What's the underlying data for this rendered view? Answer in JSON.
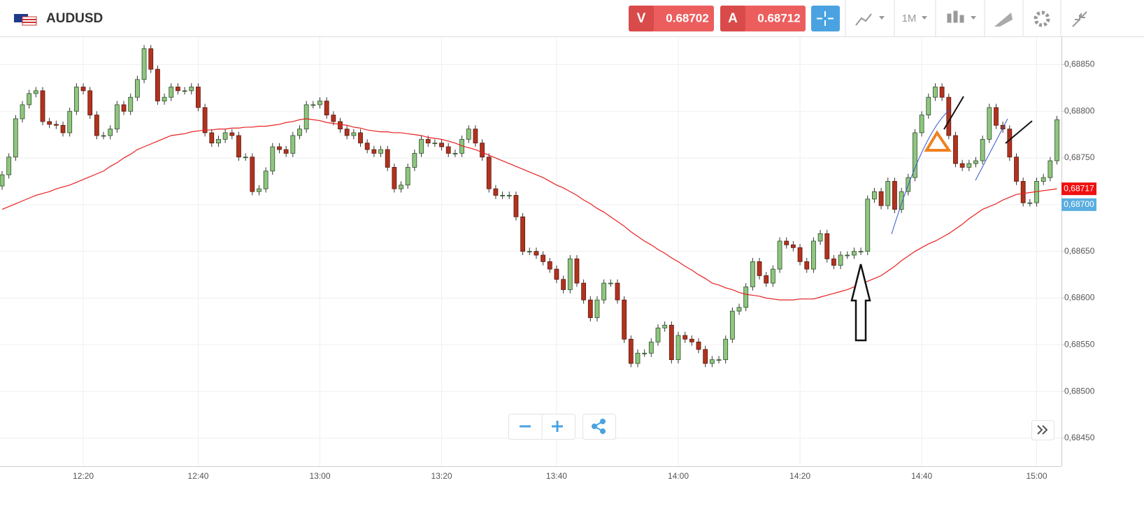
{
  "toolbar": {
    "symbol": "AUDUSD",
    "bid_letter": "V",
    "bid": "0.68702",
    "ask_letter": "A",
    "ask": "0.68712",
    "timeframe": "1M"
  },
  "chart_data": {
    "type": "candlestick",
    "up_color": "#8fc67f",
    "down_color": "#b2321e",
    "grid": true,
    "ylim": [
      0.6842,
      0.68878
    ],
    "yticks": [
      {
        "value": 0.6885,
        "label": "0,68850"
      },
      {
        "value": 0.688,
        "label": "0,68800"
      },
      {
        "value": 0.6875,
        "label": "0,68750"
      },
      {
        "value": 0.687,
        "label": "0,68700"
      },
      {
        "value": 0.6865,
        "label": "0,68650"
      },
      {
        "value": 0.686,
        "label": "0,68600"
      },
      {
        "value": 0.6855,
        "label": "0,68550"
      },
      {
        "value": 0.685,
        "label": "0,68500"
      },
      {
        "value": 0.6845,
        "label": "0,68450"
      }
    ],
    "price_markers": [
      {
        "value": 0.68717,
        "label": "0,68717",
        "color": "#f01010"
      },
      {
        "value": 0.687,
        "label": "0,68700",
        "color": "#5aaee0"
      }
    ],
    "categories": [
      null,
      null,
      null,
      null,
      null,
      null,
      null,
      null,
      null,
      null,
      null,
      null,
      "12:20",
      null,
      null,
      null,
      null,
      null,
      null,
      null,
      null,
      null,
      null,
      null,
      null,
      null,
      null,
      null,
      null,
      "12:40",
      null,
      null,
      null,
      null,
      null,
      null,
      null,
      null,
      null,
      null,
      null,
      null,
      null,
      null,
      null,
      null,
      null,
      "13:00",
      null,
      null,
      null,
      null,
      null,
      null,
      null,
      null,
      null,
      null,
      null,
      null,
      null,
      null,
      null,
      null,
      null,
      "13:20",
      null,
      null,
      null,
      null,
      null,
      null,
      null,
      null,
      null,
      null,
      null,
      null,
      null,
      null,
      null,
      null,
      "13:40",
      null,
      null,
      null,
      null,
      null,
      null,
      null,
      null,
      null,
      null,
      null,
      null,
      null,
      null,
      null,
      null,
      null,
      "14:00",
      null,
      null,
      null,
      null,
      null,
      null,
      null,
      null,
      null,
      null,
      null,
      null,
      null,
      null,
      null,
      null,
      null,
      "14:20",
      null,
      null,
      null,
      null,
      null,
      null,
      null,
      null,
      null,
      null,
      null,
      null,
      null,
      null,
      null,
      null,
      null,
      "14:40",
      null,
      null,
      null,
      null,
      null,
      null,
      null,
      null,
      null,
      null,
      null,
      null,
      null,
      null,
      null,
      null,
      "15:00",
      null,
      null,
      null
    ],
    "open": [
      0.6872,
      0.68732,
      0.68751,
      0.68792,
      0.68807,
      0.68819,
      0.68822,
      0.68789,
      0.68786,
      0.68785,
      0.68777,
      0.688,
      0.68826,
      0.68822,
      0.68796,
      0.68774,
      0.68774,
      0.68781,
      0.68807,
      0.688,
      0.68815,
      0.68834,
      0.68867,
      0.68845,
      0.68811,
      0.68815,
      0.68826,
      0.68822,
      0.68822,
      0.68826,
      0.68804,
      0.68777,
      0.68766,
      0.6877,
      0.68777,
      0.68774,
      0.68751,
      0.68751,
      0.68714,
      0.68717,
      0.68736,
      0.68762,
      0.68759,
      0.68755,
      0.68774,
      0.68781,
      0.68807,
      0.68807,
      0.68811,
      0.68796,
      0.68789,
      0.68781,
      0.68774,
      0.68777,
      0.68766,
      0.68759,
      0.68755,
      0.68759,
      0.6874,
      0.68717,
      0.68721,
      0.6874,
      0.68755,
      0.6877,
      0.68766,
      0.68766,
      0.68762,
      0.68755,
      0.68755,
      0.6877,
      0.68781,
      0.68766,
      0.68751,
      0.68717,
      0.6871,
      0.6871,
      0.6871,
      0.68687,
      0.6865,
      0.6865,
      0.68646,
      0.68639,
      0.68631,
      0.6862,
      0.68609,
      0.68642,
      0.68616,
      0.68598,
      0.68579,
      0.68598,
      0.68616,
      0.68616,
      0.68598,
      0.68556,
      0.6853,
      0.68541,
      0.68541,
      0.68553,
      0.68568,
      0.68571,
      0.68534,
      0.6856,
      0.68556,
      0.68553,
      0.68545,
      0.6853,
      0.68534,
      0.68534,
      0.68556,
      0.68586,
      0.6859,
      0.68612,
      0.68639,
      0.68624,
      0.68616,
      0.68631,
      0.68661,
      0.68657,
      0.68654,
      0.68639,
      0.68631,
      0.68661,
      0.68669,
      0.68642,
      0.68635,
      0.68646,
      0.68646,
      0.6865,
      0.6865,
      0.68706,
      0.68714,
      0.68699,
      0.68725,
      0.68695,
      0.68714,
      0.68729,
      0.68777,
      0.68796,
      0.68815,
      0.68826,
      0.68815,
      0.68774,
      0.68744,
      0.6874,
      0.68744,
      0.68747,
      0.6877,
      0.68804,
      0.68785,
      0.68781,
      0.68751,
      0.68725,
      0.68702,
      0.68702,
      0.68725,
      0.68729,
      0.68747
    ],
    "high": [
      0.68736,
      0.68755,
      0.68796,
      0.68811,
      0.68823,
      0.68826,
      0.68826,
      0.68793,
      0.6879,
      0.68789,
      0.68804,
      0.6883,
      0.6883,
      0.68826,
      0.688,
      0.68778,
      0.68785,
      0.68811,
      0.68811,
      0.68819,
      0.68838,
      0.68871,
      0.68871,
      0.68849,
      0.68819,
      0.6883,
      0.6883,
      0.68826,
      0.6883,
      0.6883,
      0.68808,
      0.68781,
      0.68774,
      0.68781,
      0.68781,
      0.68778,
      0.68755,
      0.68755,
      0.68721,
      0.6874,
      0.68766,
      0.68766,
      0.68763,
      0.68778,
      0.68785,
      0.68811,
      0.68811,
      0.68815,
      0.68815,
      0.688,
      0.68793,
      0.68785,
      0.68781,
      0.68781,
      0.6877,
      0.68763,
      0.68763,
      0.68763,
      0.68744,
      0.68725,
      0.68744,
      0.68759,
      0.68774,
      0.68774,
      0.6877,
      0.6877,
      0.68766,
      0.68759,
      0.68774,
      0.68785,
      0.68785,
      0.6877,
      0.68755,
      0.68721,
      0.68714,
      0.68714,
      0.68714,
      0.68691,
      0.68654,
      0.68654,
      0.6865,
      0.68643,
      0.68635,
      0.68624,
      0.68646,
      0.68646,
      0.6862,
      0.68602,
      0.68602,
      0.6862,
      0.6862,
      0.6862,
      0.68602,
      0.6856,
      0.68545,
      0.68545,
      0.68557,
      0.68572,
      0.68575,
      0.68575,
      0.68564,
      0.68564,
      0.6856,
      0.68557,
      0.68549,
      0.68538,
      0.68538,
      0.6856,
      0.6859,
      0.68594,
      0.68616,
      0.68643,
      0.68643,
      0.68628,
      0.68635,
      0.68665,
      0.68665,
      0.68661,
      0.68658,
      0.68643,
      0.68665,
      0.68673,
      0.68673,
      0.68646,
      0.6865,
      0.6865,
      0.68654,
      0.68654,
      0.6871,
      0.68718,
      0.68718,
      0.68729,
      0.68729,
      0.68718,
      0.68733,
      0.68781,
      0.688,
      0.68819,
      0.6883,
      0.6883,
      0.68819,
      0.68778,
      0.68748,
      0.68748,
      0.68751,
      0.68774,
      0.68808,
      0.68808,
      0.68789,
      0.68785,
      0.68755,
      0.68729,
      0.68706,
      0.68729,
      0.68733,
      0.68751,
      0.68795
    ],
    "low": [
      0.68716,
      0.68728,
      0.68747,
      0.68788,
      0.68803,
      0.68815,
      0.68785,
      0.68782,
      0.68781,
      0.68773,
      0.68773,
      0.68796,
      0.68818,
      0.68792,
      0.6877,
      0.6877,
      0.6877,
      0.68777,
      0.68796,
      0.68796,
      0.68811,
      0.6883,
      0.68841,
      0.68807,
      0.68807,
      0.68811,
      0.68818,
      0.68818,
      0.68818,
      0.688,
      0.68773,
      0.68762,
      0.68762,
      0.68766,
      0.6877,
      0.68747,
      0.68747,
      0.6871,
      0.6871,
      0.68713,
      0.68732,
      0.68755,
      0.68751,
      0.68751,
      0.6877,
      0.68777,
      0.68803,
      0.68803,
      0.68792,
      0.68785,
      0.68777,
      0.6877,
      0.6877,
      0.68762,
      0.68755,
      0.68751,
      0.68751,
      0.68736,
      0.68713,
      0.68713,
      0.68717,
      0.68736,
      0.68751,
      0.68762,
      0.68762,
      0.68758,
      0.68751,
      0.68751,
      0.68751,
      0.68766,
      0.68762,
      0.68747,
      0.68713,
      0.68706,
      0.68706,
      0.68706,
      0.68683,
      0.68646,
      0.68646,
      0.68642,
      0.68635,
      0.68627,
      0.68616,
      0.68605,
      0.68605,
      0.68612,
      0.68594,
      0.68575,
      0.68575,
      0.68594,
      0.68612,
      0.68594,
      0.68552,
      0.68526,
      0.68526,
      0.68537,
      0.68537,
      0.68549,
      0.68564,
      0.6853,
      0.6853,
      0.68552,
      0.68549,
      0.68541,
      0.68526,
      0.68526,
      0.6853,
      0.6853,
      0.68552,
      0.68582,
      0.68586,
      0.68608,
      0.6862,
      0.68612,
      0.68612,
      0.68627,
      0.68653,
      0.6865,
      0.68635,
      0.68627,
      0.68627,
      0.68657,
      0.68638,
      0.68631,
      0.68631,
      0.68642,
      0.68642,
      0.68646,
      0.68646,
      0.68702,
      0.68695,
      0.68695,
      0.68691,
      0.68691,
      0.6871,
      0.68725,
      0.68773,
      0.68792,
      0.68811,
      0.68811,
      0.6877,
      0.6874,
      0.68736,
      0.68736,
      0.6874,
      0.68743,
      0.68766,
      0.68781,
      0.68777,
      0.68747,
      0.68721,
      0.68698,
      0.68698,
      0.68698,
      0.68721,
      0.68725,
      0.68743
    ],
    "close": [
      0.68732,
      0.68751,
      0.68792,
      0.68807,
      0.68819,
      0.68822,
      0.68789,
      0.68786,
      0.68785,
      0.68777,
      0.688,
      0.68826,
      0.68822,
      0.68796,
      0.68774,
      0.68774,
      0.68781,
      0.68807,
      0.688,
      0.68815,
      0.68834,
      0.68867,
      0.68845,
      0.68811,
      0.68815,
      0.68826,
      0.68822,
      0.68822,
      0.68826,
      0.68804,
      0.68777,
      0.68766,
      0.6877,
      0.68777,
      0.68774,
      0.68751,
      0.68751,
      0.68714,
      0.68717,
      0.68736,
      0.68762,
      0.68759,
      0.68755,
      0.68774,
      0.68781,
      0.68807,
      0.68807,
      0.68811,
      0.68796,
      0.68789,
      0.68781,
      0.68774,
      0.68777,
      0.68766,
      0.68759,
      0.68755,
      0.68759,
      0.6874,
      0.68717,
      0.68721,
      0.6874,
      0.68755,
      0.6877,
      0.68766,
      0.68766,
      0.68762,
      0.68755,
      0.68755,
      0.6877,
      0.68781,
      0.68766,
      0.68751,
      0.68717,
      0.6871,
      0.6871,
      0.6871,
      0.68687,
      0.6865,
      0.6865,
      0.68646,
      0.68639,
      0.68631,
      0.6862,
      0.68609,
      0.68642,
      0.68616,
      0.68598,
      0.68579,
      0.68598,
      0.68616,
      0.68616,
      0.68598,
      0.68556,
      0.6853,
      0.68541,
      0.68541,
      0.68553,
      0.68568,
      0.68571,
      0.68534,
      0.6856,
      0.68556,
      0.68553,
      0.68545,
      0.6853,
      0.68534,
      0.68534,
      0.68556,
      0.68586,
      0.6859,
      0.68612,
      0.68639,
      0.68624,
      0.68616,
      0.68631,
      0.68661,
      0.68657,
      0.68654,
      0.68639,
      0.68631,
      0.68661,
      0.68669,
      0.68642,
      0.68635,
      0.68646,
      0.68646,
      0.6865,
      0.6865,
      0.68706,
      0.68714,
      0.68699,
      0.68725,
      0.68695,
      0.68714,
      0.68729,
      0.68777,
      0.68796,
      0.68815,
      0.68826,
      0.68815,
      0.68774,
      0.68744,
      0.6874,
      0.68744,
      0.68747,
      0.6877,
      0.68804,
      0.68785,
      0.68781,
      0.68751,
      0.68725,
      0.68702,
      0.68702,
      0.68725,
      0.68729,
      0.68747,
      0.68791
    ],
    "overlay": {
      "color": "#e82020",
      "values": [
        0.68695,
        0.68698,
        0.68701,
        0.68704,
        0.68707,
        0.6871,
        0.68712,
        0.68714,
        0.68717,
        0.68719,
        0.68721,
        0.68724,
        0.68727,
        0.6873,
        0.68733,
        0.68736,
        0.68741,
        0.68745,
        0.6875,
        0.68754,
        0.68759,
        0.68762,
        0.68765,
        0.68768,
        0.68771,
        0.68774,
        0.68775,
        0.68776,
        0.68778,
        0.68779,
        0.6878,
        0.6878,
        0.68781,
        0.68781,
        0.68782,
        0.68782,
        0.68783,
        0.68783,
        0.68784,
        0.68784,
        0.68785,
        0.68786,
        0.68788,
        0.68789,
        0.68791,
        0.68792,
        0.68791,
        0.6879,
        0.68788,
        0.68787,
        0.68786,
        0.68785,
        0.68783,
        0.68782,
        0.6878,
        0.68779,
        0.68778,
        0.68778,
        0.68777,
        0.68777,
        0.68776,
        0.68775,
        0.68774,
        0.68772,
        0.68771,
        0.6877,
        0.68768,
        0.68766,
        0.68763,
        0.68761,
        0.68759,
        0.68756,
        0.68753,
        0.6875,
        0.68747,
        0.68744,
        0.68741,
        0.68738,
        0.68735,
        0.68732,
        0.68729,
        0.68725,
        0.68721,
        0.68718,
        0.68714,
        0.6871,
        0.68705,
        0.68701,
        0.68696,
        0.68692,
        0.68687,
        0.68682,
        0.68677,
        0.68671,
        0.68666,
        0.68661,
        0.68657,
        0.68652,
        0.68648,
        0.68643,
        0.68639,
        0.68634,
        0.6863,
        0.68625,
        0.68621,
        0.68616,
        0.68614,
        0.68611,
        0.68609,
        0.68606,
        0.68604,
        0.68603,
        0.68602,
        0.686,
        0.68599,
        0.68598,
        0.68598,
        0.68598,
        0.68599,
        0.68599,
        0.68599,
        0.68601,
        0.68603,
        0.68605,
        0.68607,
        0.68609,
        0.68612,
        0.68615,
        0.68618,
        0.68621,
        0.68624,
        0.68629,
        0.68634,
        0.6864,
        0.68645,
        0.6865,
        0.68654,
        0.68658,
        0.68661,
        0.68665,
        0.68669,
        0.68674,
        0.68679,
        0.68685,
        0.6869,
        0.68695,
        0.68698,
        0.68701,
        0.68705,
        0.68708,
        0.68711,
        0.68712,
        0.68713,
        0.68714,
        0.68715,
        0.68716,
        0.68717
      ]
    }
  }
}
